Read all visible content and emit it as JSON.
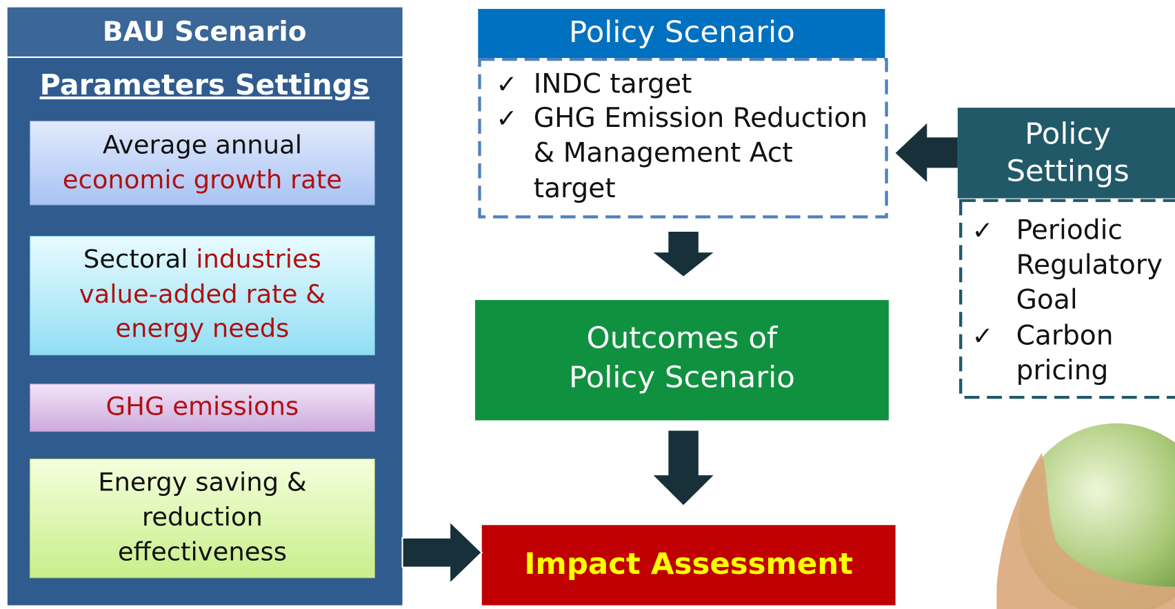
{
  "bau": {
    "title": "BAU Scenario",
    "subtitle": "Parameters Settings",
    "boxes": [
      {
        "lines": [
          "Average annual",
          "economic growth rate"
        ]
      },
      {
        "lines": [
          "Sectoral",
          "industries",
          "value-added rate &",
          "energy needs"
        ]
      },
      {
        "lines": [
          "GHG emissions"
        ]
      },
      {
        "lines": [
          "Energy saving &",
          "reduction",
          "effectiveness"
        ]
      }
    ]
  },
  "policy_scenario": {
    "title": "Policy Scenario",
    "bullet": "✓",
    "items": [
      [
        "INDC target"
      ],
      [
        "GHG Emission Reduction",
        "& Management Act",
        "target"
      ]
    ]
  },
  "outcomes": {
    "lines": [
      "Outcomes of",
      "Policy Scenario"
    ]
  },
  "impact": {
    "title": "Impact Assessment"
  },
  "policy_settings": {
    "title": [
      "Policy",
      "Settings"
    ],
    "bullet": "✓",
    "items": [
      [
        "Periodic",
        "Regulatory",
        "Goal"
      ],
      [
        "Carbon",
        "pricing"
      ]
    ]
  }
}
